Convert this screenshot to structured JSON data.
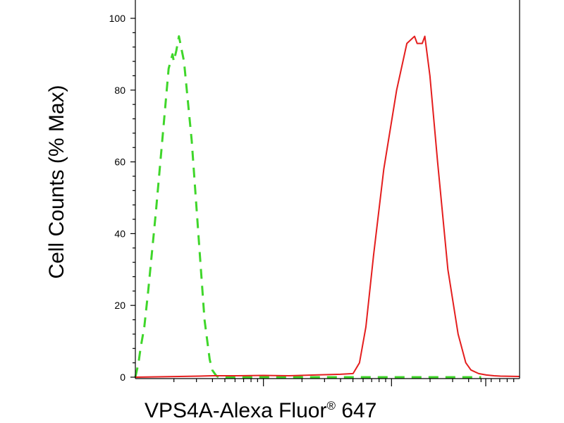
{
  "chart_data": {
    "type": "line",
    "title": "",
    "xlabel": "VPS4A-Alexa Fluor",
    "xlabel_sup": "®",
    "xlabel_tail": " 647",
    "ylabel": "Cell Counts (% Max)",
    "x_scale": "log",
    "x_decades": 3,
    "ylim": [
      0,
      100
    ],
    "yticks": [
      "0",
      "20",
      "40",
      "60",
      "80",
      "100"
    ],
    "grid": false,
    "legend": "none",
    "series": [
      {
        "color": "#3fd62a",
        "style": "dashed",
        "x": [
          0.0,
          0.025,
          0.04,
          0.07,
          0.1,
          0.16,
          0.22,
          0.26,
          0.29,
          0.3,
          0.32,
          0.34,
          0.38,
          0.44,
          0.5,
          0.54,
          0.58,
          0.6,
          0.63,
          0.65,
          0.7,
          1.0,
          1.5,
          2.0,
          2.7
        ],
        "y": [
          0,
          4,
          8,
          14,
          24,
          46,
          70,
          86,
          90,
          88,
          91,
          95,
          88,
          66,
          36,
          16,
          5,
          2,
          0.5,
          0,
          0,
          0,
          0,
          0,
          0
        ]
      },
      {
        "color": "#e41e1e",
        "style": "solid",
        "x": [
          0.0,
          0.5,
          0.6,
          0.8,
          1.0,
          1.2,
          1.4,
          1.6,
          1.7,
          1.75,
          1.8,
          1.86,
          1.94,
          2.04,
          2.12,
          2.18,
          2.2,
          2.24,
          2.26,
          2.3,
          2.36,
          2.44,
          2.52,
          2.58,
          2.62,
          2.68,
          2.74,
          2.8,
          2.85,
          3.0
        ],
        "y": [
          0,
          0.3,
          0.4,
          0.4,
          0.5,
          0.4,
          0.6,
          0.8,
          1,
          4,
          14,
          34,
          58,
          80,
          93,
          95,
          93,
          93,
          95,
          84,
          60,
          30,
          12,
          4,
          2,
          1,
          0.6,
          0.4,
          0.3,
          0.2
        ]
      }
    ]
  }
}
